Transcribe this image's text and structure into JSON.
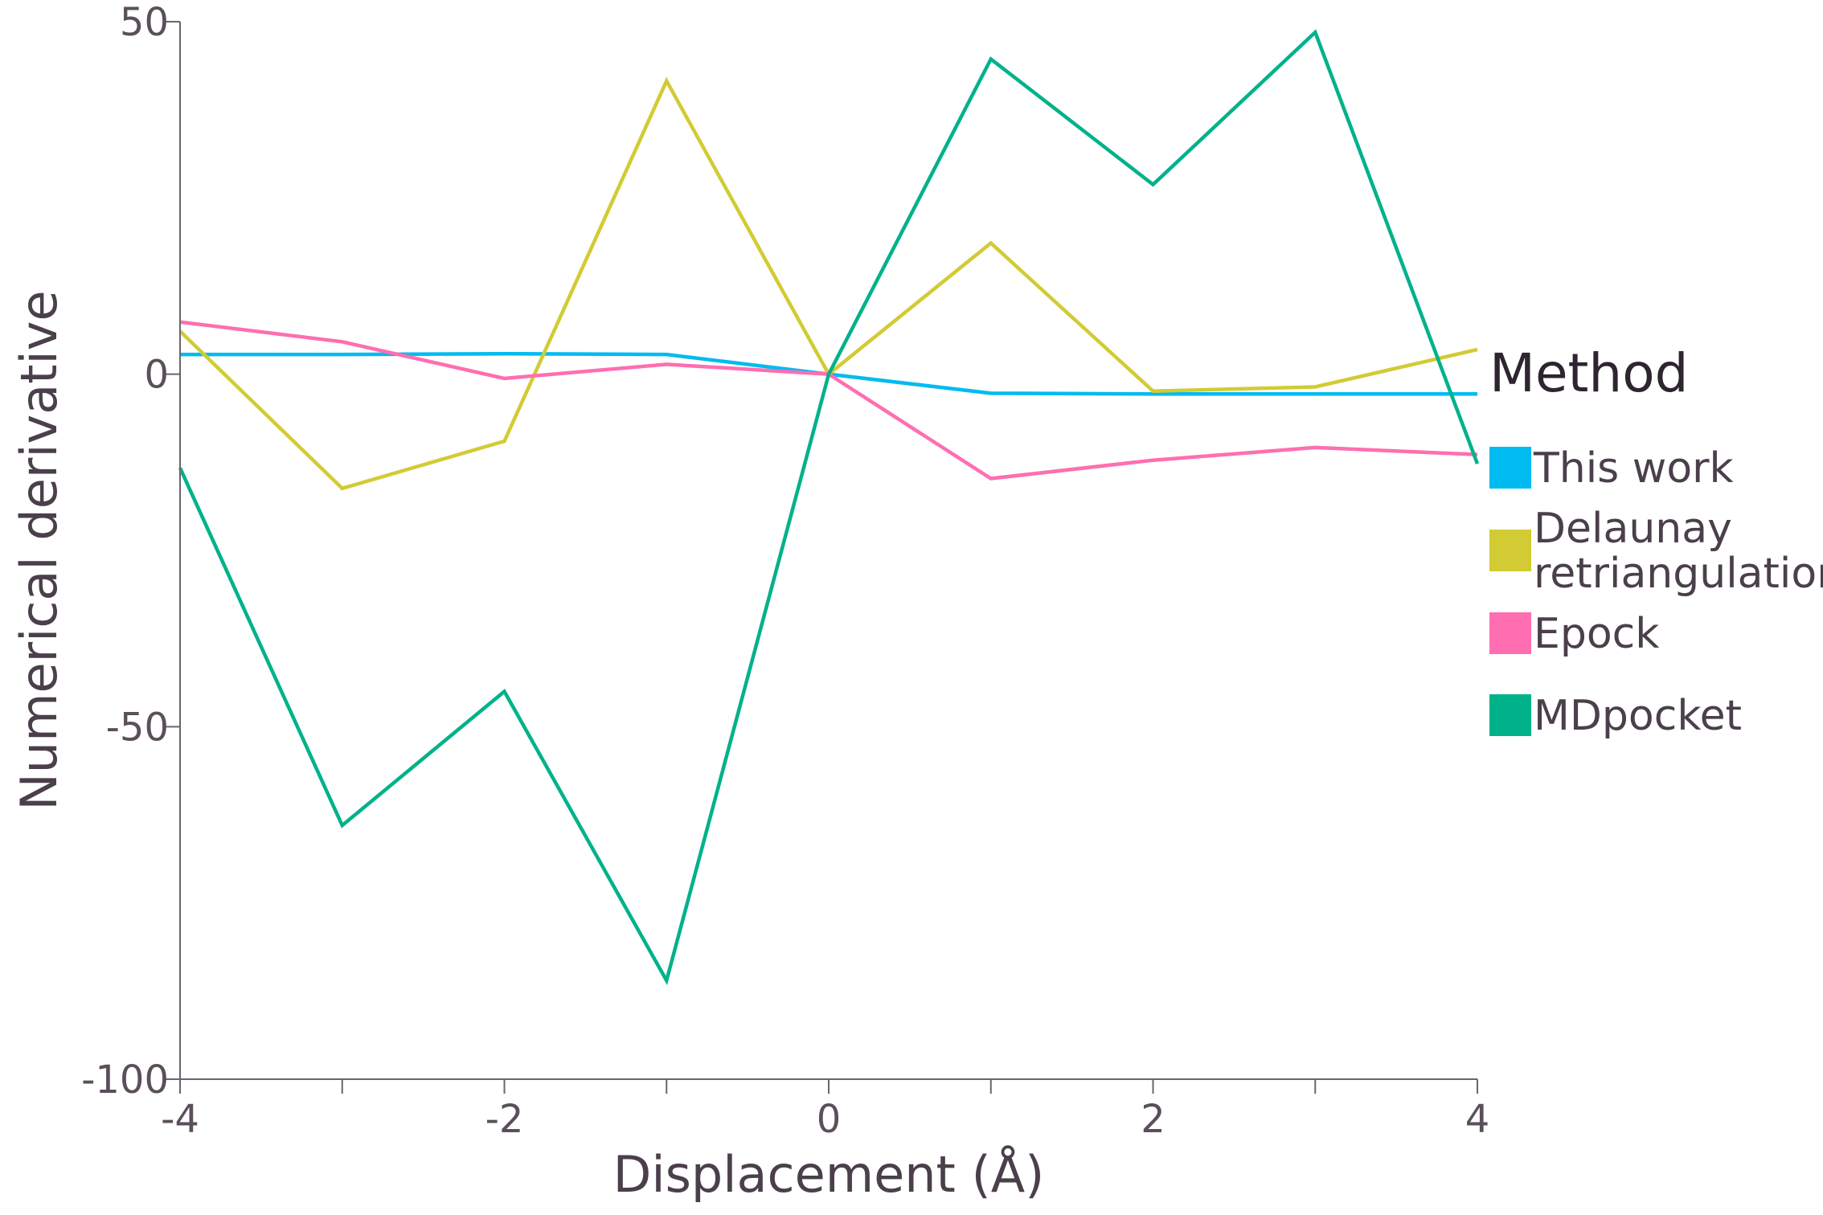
{
  "chart_data": {
    "type": "line",
    "title": "",
    "xlabel": "Displacement (Å)",
    "ylabel": "Numerical derivative",
    "xlim": [
      -4,
      4
    ],
    "ylim": [
      -100,
      50
    ],
    "x_ticks": [
      -4,
      -3,
      -2,
      -1,
      0,
      1,
      2,
      3,
      4
    ],
    "x_tick_labels": [
      "-4",
      "",
      "-2",
      "",
      "0",
      "",
      "2",
      "",
      "4"
    ],
    "y_ticks": [
      -100,
      -50,
      0,
      50
    ],
    "y_tick_labels": [
      "-100",
      "-50",
      "0",
      "50"
    ],
    "grid": false,
    "legend": {
      "title": "Method",
      "placement": "right"
    },
    "x": [
      -4,
      -3,
      -2,
      -1,
      0,
      1,
      2,
      3,
      4
    ],
    "series": [
      {
        "name": "This work",
        "label_lines": [
          "This work"
        ],
        "color": "#00bbf0",
        "values": [
          2.8,
          2.8,
          2.9,
          2.8,
          0,
          -2.7,
          -2.8,
          -2.8,
          -2.8
        ]
      },
      {
        "name": "Delaunay retriangulation",
        "label_lines": [
          "Delaunay",
          "retriangulation"
        ],
        "color": "#d2cb34",
        "values": [
          6.1,
          -16.2,
          -9.5,
          41.6,
          0,
          18.6,
          -2.4,
          -1.8,
          3.5
        ]
      },
      {
        "name": "Epock",
        "label_lines": [
          "Epock"
        ],
        "color": "#ff6eb0",
        "values": [
          7.4,
          4.6,
          -0.6,
          1.4,
          0,
          -14.8,
          -12.2,
          -10.4,
          -11.4
        ]
      },
      {
        "name": "MDpocket",
        "label_lines": [
          "MDpocket"
        ],
        "color": "#00b28a",
        "values": [
          -13.3,
          -64.0,
          -45.0,
          -86.0,
          0,
          44.7,
          26.9,
          48.5,
          -12.7
        ]
      }
    ]
  }
}
